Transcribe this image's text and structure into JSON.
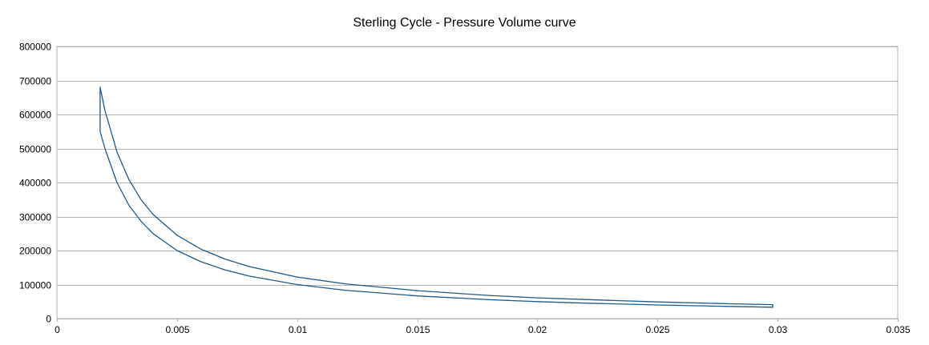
{
  "chart_data": {
    "type": "scatter",
    "title": "Sterling Cycle - Pressure Volume curve",
    "xlabel": "",
    "ylabel": "",
    "xlim": [
      0,
      0.035
    ],
    "ylim": [
      0,
      800000
    ],
    "x_ticks": [
      0,
      0.005,
      0.01,
      0.015,
      0.02,
      0.025,
      0.03,
      0.035
    ],
    "x_tick_labels": [
      "0",
      "0.005",
      "0.01",
      "0.015",
      "0.02",
      "0.025",
      "0.03",
      "0.035"
    ],
    "y_ticks": [
      0,
      100000,
      200000,
      300000,
      400000,
      500000,
      600000,
      700000,
      800000
    ],
    "y_tick_labels": [
      "0",
      "100000",
      "200000",
      "300000",
      "400000",
      "500000",
      "600000",
      "700000",
      "800000"
    ],
    "grid": true,
    "legend": "none",
    "series_color": "#1f5a8a",
    "series": [
      {
        "points": [
          [
            0.0018,
            680000
          ],
          [
            0.002,
            612000
          ],
          [
            0.0025,
            490000
          ],
          [
            0.003,
            408000
          ],
          [
            0.0035,
            350000
          ],
          [
            0.004,
            306000
          ],
          [
            0.005,
            245000
          ],
          [
            0.006,
            204000
          ],
          [
            0.007,
            175000
          ],
          [
            0.008,
            153000
          ],
          [
            0.01,
            122000
          ],
          [
            0.012,
            102000
          ],
          [
            0.015,
            82000
          ],
          [
            0.018,
            68000
          ],
          [
            0.02,
            61000
          ],
          [
            0.022,
            56000
          ],
          [
            0.025,
            49000
          ],
          [
            0.028,
            43500
          ],
          [
            0.0298,
            41000
          ],
          [
            0.0298,
            33500
          ],
          [
            0.028,
            35700
          ],
          [
            0.025,
            40000
          ],
          [
            0.022,
            45500
          ],
          [
            0.02,
            50000
          ],
          [
            0.018,
            55500
          ],
          [
            0.015,
            66700
          ],
          [
            0.012,
            83300
          ],
          [
            0.01,
            100000
          ],
          [
            0.008,
            125000
          ],
          [
            0.007,
            143000
          ],
          [
            0.006,
            167000
          ],
          [
            0.005,
            200000
          ],
          [
            0.004,
            250000
          ],
          [
            0.0035,
            286000
          ],
          [
            0.003,
            333000
          ],
          [
            0.0025,
            400000
          ],
          [
            0.002,
            500000
          ],
          [
            0.0018,
            550000
          ],
          [
            0.0018,
            680000
          ]
        ]
      }
    ]
  }
}
